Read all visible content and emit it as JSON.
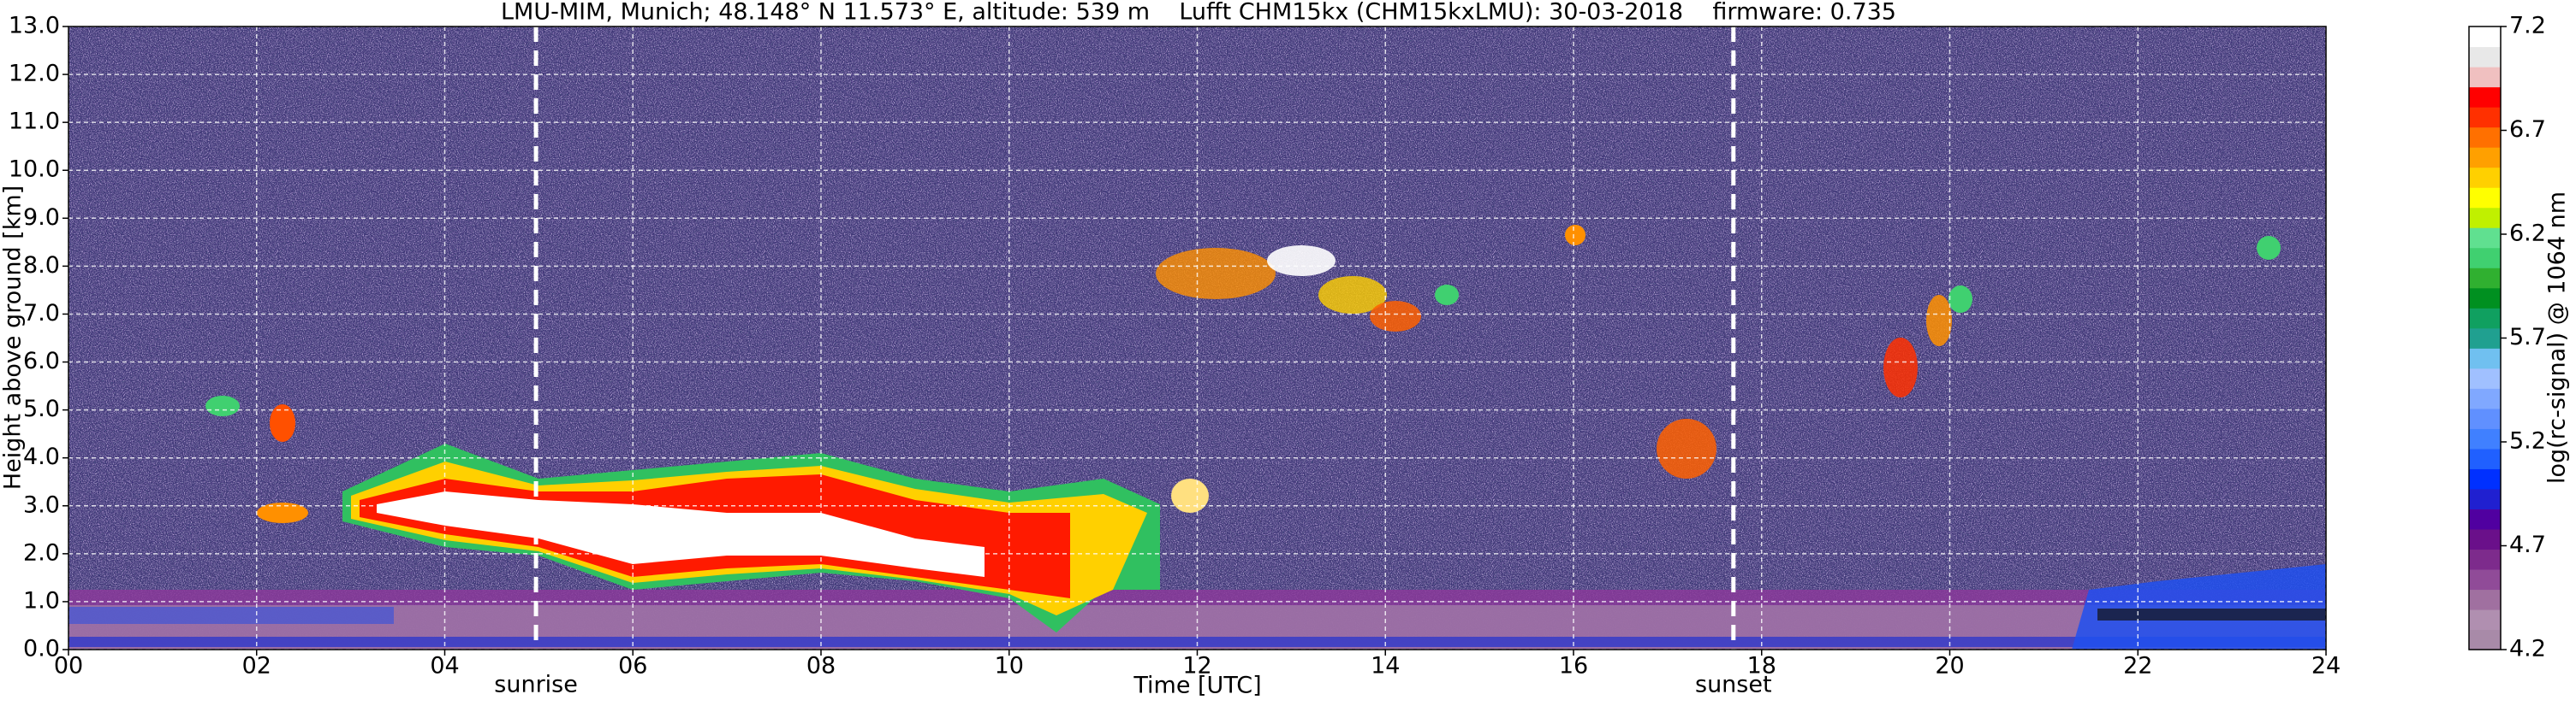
{
  "chart_data": {
    "type": "heatmap",
    "title": "LMU-MIM, Munich; 48.148° N 11.573° E, altitude: 539 m    Lufft CHM15kx (CHM15kxLMU): 30-03-2018    firmware: 0.735",
    "x_label": "Time [UTC]",
    "y_label": "Height above ground [km]",
    "xlim": [
      0,
      24
    ],
    "xticks": [
      {
        "value": 0,
        "label": "00"
      },
      {
        "value": 2,
        "label": "02"
      },
      {
        "value": 4,
        "label": "04"
      },
      {
        "value": 6,
        "label": "06"
      },
      {
        "value": 8,
        "label": "08"
      },
      {
        "value": 10,
        "label": "10"
      },
      {
        "value": 12,
        "label": "12"
      },
      {
        "value": 14,
        "label": "14"
      },
      {
        "value": 16,
        "label": "16"
      },
      {
        "value": 18,
        "label": "18"
      },
      {
        "value": 20,
        "label": "20"
      },
      {
        "value": 22,
        "label": "22"
      },
      {
        "value": 24,
        "label": "24"
      }
    ],
    "ylim": [
      0,
      13
    ],
    "yticks": [
      {
        "value": 0,
        "label": "0.0"
      },
      {
        "value": 1,
        "label": "1.0"
      },
      {
        "value": 2,
        "label": "2.0"
      },
      {
        "value": 3,
        "label": "3.0"
      },
      {
        "value": 4,
        "label": "4.0"
      },
      {
        "value": 5,
        "label": "5.0"
      },
      {
        "value": 6,
        "label": "6.0"
      },
      {
        "value": 7,
        "label": "7.0"
      },
      {
        "value": 8,
        "label": "8.0"
      },
      {
        "value": 9,
        "label": "9.0"
      },
      {
        "value": 10,
        "label": "10.0"
      },
      {
        "value": 11,
        "label": "11.0"
      },
      {
        "value": 12,
        "label": "12.0"
      },
      {
        "value": 13,
        "label": "13.0"
      }
    ],
    "grid": true,
    "colorbar": {
      "label": "log(rc-signal) @ 1064 nm",
      "lim": [
        4.2,
        7.2
      ],
      "ticks": [
        4.2,
        4.7,
        5.2,
        5.7,
        6.2,
        6.7,
        7.2
      ],
      "colors": [
        "#a88aa8",
        "#b08fb0",
        "#a070a0",
        "#904b98",
        "#7d2b8c",
        "#6a108a",
        "#5000a0",
        "#2020d0",
        "#0030ff",
        "#2060ff",
        "#4080ff",
        "#6090ff",
        "#80a8ff",
        "#a0c0ff",
        "#70c0f0",
        "#20a090",
        "#10a060",
        "#009020",
        "#30b030",
        "#40d070",
        "#60e090",
        "#c0f000",
        "#ffff00",
        "#ffd000",
        "#ffa000",
        "#ff7000",
        "#ff3000",
        "#ff0000",
        "#f0c0c0",
        "#e8e8e8",
        "#ffffff"
      ]
    },
    "annotations": [
      {
        "label": "sunrise",
        "x": 4.97
      },
      {
        "label": "sunset",
        "x": 17.7
      }
    ]
  }
}
